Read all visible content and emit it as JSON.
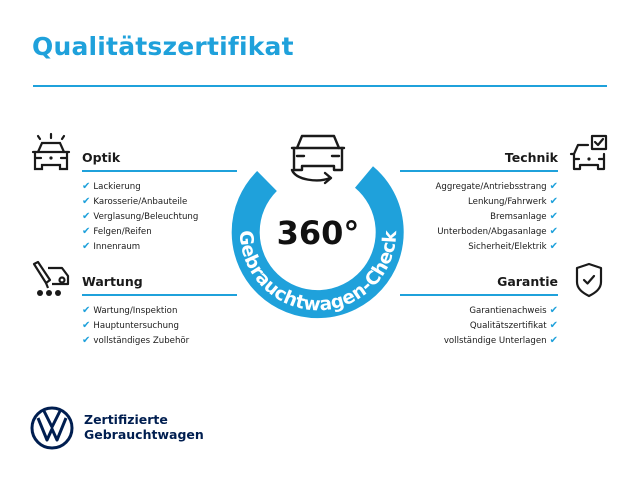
{
  "title": "Qualitätszertifikat",
  "colors": {
    "accent": "#1fa1db",
    "brand_navy": "#001e50"
  },
  "badge": {
    "value": "360°",
    "arc_text": "Gebrauchtwagen-Check",
    "icon": "car-rotate-icon"
  },
  "sections": {
    "optik": {
      "heading": "Optik",
      "icon": "car-lights-icon",
      "items": [
        "Lackierung",
        "Karosserie/Anbauteile",
        "Verglasung/Beleuchtung",
        "Felgen/Reifen",
        "Innenraum"
      ]
    },
    "wartung": {
      "heading": "Wartung",
      "icon": "service-tools-icon",
      "items": [
        "Wartung/Inspektion",
        "Hauptuntersuchung",
        "vollständiges Zubehör"
      ]
    },
    "technik": {
      "heading": "Technik",
      "icon": "car-checkbox-icon",
      "items": [
        "Aggregate/Antriebsstrang",
        "Lenkung/Fahrwerk",
        "Bremsanlage",
        "Unterboden/Abgasanlage",
        "Sicherheit/Elektrik"
      ]
    },
    "garantie": {
      "heading": "Garantie",
      "icon": "shield-check-icon",
      "items": [
        "Garantienachweis",
        "Qualitätszertifikat",
        "vollständige Unterlagen"
      ]
    }
  },
  "check_mark": "✔",
  "footer": {
    "logo": "VW",
    "line1": "Zertifizierte",
    "line2": "Gebrauchtwagen"
  }
}
